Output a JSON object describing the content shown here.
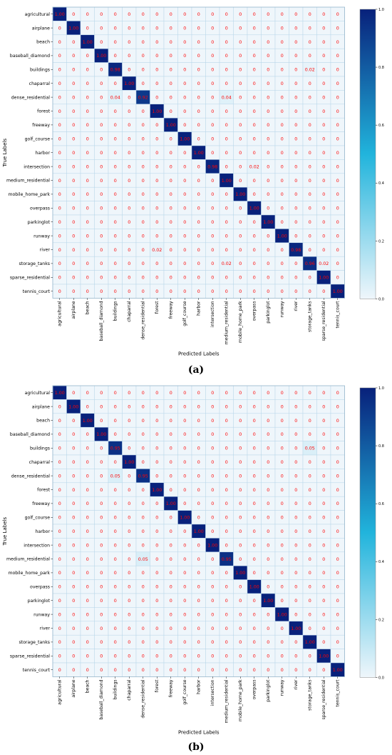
{
  "chart_data": [
    {
      "type": "heatmap",
      "panel_label": "(a)",
      "xlabel": "Predicted Labels",
      "ylabel": "True Labels",
      "labels": [
        "agricultural",
        "airplane",
        "beach",
        "baseball_diamond",
        "buildings",
        "chaparral",
        "dense_residential",
        "forest",
        "freeway",
        "golf_course",
        "harbor",
        "intersection",
        "medium_residential",
        "mobile_home_park",
        "overpass",
        "parkinglot",
        "runway",
        "river",
        "storage_tanks",
        "sparse_residential",
        "tennis_court"
      ],
      "colorbar": {
        "range": [
          0,
          1
        ],
        "ticks": [
          "0.0",
          "0.2",
          "0.4",
          "0.6",
          "0.8",
          "1.0"
        ]
      },
      "cells": [
        [
          "1.00",
          "0",
          "0",
          "0",
          "0",
          "0",
          "0",
          "0",
          "0",
          "0",
          "0",
          "0",
          "0",
          "0",
          "0",
          "0",
          "0",
          "0",
          "0",
          "0",
          "0"
        ],
        [
          "0",
          "1.00",
          "0",
          "0",
          "0",
          "0",
          "0",
          "0",
          "0",
          "0",
          "0",
          "0",
          "0",
          "0",
          "0",
          "0",
          "0",
          "0",
          "0",
          "0",
          "0"
        ],
        [
          "0",
          "0",
          "1.00",
          "0",
          "0",
          "0",
          "0",
          "0",
          "0",
          "0",
          "0",
          "0",
          "0",
          "0",
          "0",
          "0",
          "0",
          "0",
          "0",
          "0",
          "0"
        ],
        [
          "0",
          "0",
          "0",
          "1.00",
          "0",
          "0",
          "0",
          "0",
          "0",
          "0",
          "0",
          "0",
          "0",
          "0",
          "0",
          "0",
          "0",
          "0",
          "0",
          "0",
          "0"
        ],
        [
          "0",
          "0",
          "0",
          "0",
          "0.98",
          "0",
          "0",
          "0",
          "0",
          "0",
          "0",
          "0",
          "0",
          "0",
          "0",
          "0",
          "0",
          "0",
          "0.02",
          "0",
          "0"
        ],
        [
          "0",
          "0",
          "0",
          "0",
          "0",
          "1.00",
          "0",
          "0",
          "0",
          "0",
          "0",
          "0",
          "0",
          "0",
          "0",
          "0",
          "0",
          "0",
          "0",
          "0",
          "0"
        ],
        [
          "0",
          "0",
          "0",
          "0",
          "0.04",
          "0",
          "0.92",
          "0",
          "0",
          "0",
          "0",
          "0",
          "0.04",
          "0",
          "0",
          "0",
          "0",
          "0",
          "0",
          "0",
          "0"
        ],
        [
          "0",
          "0",
          "0",
          "0",
          "0",
          "0",
          "0",
          "1.00",
          "0",
          "0",
          "0",
          "0",
          "0",
          "0",
          "0",
          "0",
          "0",
          "0",
          "0",
          "0",
          "0"
        ],
        [
          "0",
          "0",
          "0",
          "0",
          "0",
          "0",
          "0",
          "0",
          "1.00",
          "0",
          "0",
          "0",
          "0",
          "0",
          "0",
          "0",
          "0",
          "0",
          "0",
          "0",
          "0"
        ],
        [
          "0",
          "0",
          "0",
          "0",
          "0",
          "0",
          "0",
          "0",
          "0",
          "1.00",
          "0",
          "0",
          "0",
          "0",
          "0",
          "0",
          "0",
          "0",
          "0",
          "0",
          "0"
        ],
        [
          "0",
          "0",
          "0",
          "0",
          "0",
          "0",
          "0",
          "0",
          "0",
          "0",
          "1.00",
          "0",
          "0",
          "0",
          "0",
          "0",
          "0",
          "0",
          "0",
          "0",
          "0"
        ],
        [
          "0",
          "0",
          "0",
          "0",
          "0",
          "0",
          "0",
          "0",
          "0",
          "0",
          "0",
          "0.98",
          "0",
          "0",
          "0.02",
          "0",
          "0",
          "0",
          "0",
          "0",
          "0"
        ],
        [
          "0",
          "0",
          "0",
          "0",
          "0",
          "0",
          "0",
          "0",
          "0",
          "0",
          "0",
          "0",
          "1.00",
          "0",
          "0",
          "0",
          "0",
          "0",
          "0",
          "0",
          "0"
        ],
        [
          "0",
          "0",
          "0",
          "0",
          "0",
          "0",
          "0",
          "0",
          "0",
          "0",
          "0",
          "0",
          "0",
          "1.00",
          "0",
          "0",
          "0",
          "0",
          "0",
          "0",
          "0"
        ],
        [
          "0",
          "0",
          "0",
          "0",
          "0",
          "0",
          "0",
          "0",
          "0",
          "0",
          "0",
          "0",
          "0",
          "0",
          "1.00",
          "0",
          "0",
          "0",
          "0",
          "0",
          "0"
        ],
        [
          "0",
          "0",
          "0",
          "0",
          "0",
          "0",
          "0",
          "0",
          "0",
          "0",
          "0",
          "0",
          "0",
          "0",
          "0",
          "1.00",
          "0",
          "0",
          "0",
          "0",
          "0"
        ],
        [
          "0",
          "0",
          "0",
          "0",
          "0",
          "0",
          "0",
          "0",
          "0",
          "0",
          "0",
          "0",
          "0",
          "0",
          "0",
          "0",
          "1.00",
          "0",
          "0",
          "0",
          "0"
        ],
        [
          "0",
          "0",
          "0",
          "0",
          "0",
          "0",
          "0",
          "0.02",
          "0",
          "0",
          "0",
          "0",
          "0",
          "0",
          "0",
          "0",
          "0",
          "0.98",
          "0",
          "0",
          "0"
        ],
        [
          "0",
          "0",
          "0",
          "0",
          "0",
          "0",
          "0",
          "0",
          "0",
          "0",
          "0",
          "0",
          "0.02",
          "0",
          "0",
          "0",
          "0",
          "0",
          "0.96",
          "0.02",
          "0"
        ],
        [
          "0",
          "0",
          "0",
          "0",
          "0",
          "0",
          "0",
          "0",
          "0",
          "0",
          "0",
          "0",
          "0",
          "0",
          "0",
          "0",
          "0",
          "0",
          "0",
          "1.00",
          "0"
        ],
        [
          "0",
          "0",
          "0",
          "0",
          "0",
          "0",
          "0",
          "0",
          "0",
          "0",
          "0",
          "0",
          "0",
          "0",
          "0",
          "0",
          "0",
          "0",
          "0",
          "0",
          "1.00"
        ]
      ]
    },
    {
      "type": "heatmap",
      "panel_label": "(b)",
      "xlabel": "Predicted Labels",
      "ylabel": "True Labels",
      "labels": [
        "agricultural",
        "airplane",
        "beach",
        "baseball_diamond",
        "buildings",
        "chaparral",
        "dense_residential",
        "forest",
        "freeway",
        "golf_course",
        "harbor",
        "intersection",
        "medium_residential",
        "mobile_home_park",
        "overpass",
        "parkinglot",
        "runway",
        "river",
        "storage_tanks",
        "sparse_residential",
        "tennis_court"
      ],
      "colorbar": {
        "range": [
          0,
          1
        ],
        "ticks": [
          "0.0",
          "0.2",
          "0.4",
          "0.6",
          "0.8",
          "1.0"
        ]
      },
      "cells": [
        [
          "1.00",
          "0",
          "0",
          "0",
          "0",
          "0",
          "0",
          "0",
          "0",
          "0",
          "0",
          "0",
          "0",
          "0",
          "0",
          "0",
          "0",
          "0",
          "0",
          "0",
          "0"
        ],
        [
          "0",
          "1.00",
          "0",
          "0",
          "0",
          "0",
          "0",
          "0",
          "0",
          "0",
          "0",
          "0",
          "0",
          "0",
          "0",
          "0",
          "0",
          "0",
          "0",
          "0",
          "0"
        ],
        [
          "0",
          "0",
          "1.00",
          "0",
          "0",
          "0",
          "0",
          "0",
          "0",
          "0",
          "0",
          "0",
          "0",
          "0",
          "0",
          "0",
          "0",
          "0",
          "0",
          "0",
          "0"
        ],
        [
          "0",
          "0",
          "0",
          "1.00",
          "0",
          "0",
          "0",
          "0",
          "0",
          "0",
          "0",
          "0",
          "0",
          "0",
          "0",
          "0",
          "0",
          "0",
          "0",
          "0",
          "0"
        ],
        [
          "0",
          "0",
          "0",
          "0",
          "0.95",
          "0",
          "0",
          "0",
          "0",
          "0",
          "0",
          "0",
          "0",
          "0",
          "0",
          "0",
          "0",
          "0",
          "0.05",
          "0",
          "0"
        ],
        [
          "0",
          "0",
          "0",
          "0",
          "0",
          "1.00",
          "0",
          "0",
          "0",
          "0",
          "0",
          "0",
          "0",
          "0",
          "0",
          "0",
          "0",
          "0",
          "0",
          "0",
          "0"
        ],
        [
          "0",
          "0",
          "0",
          "0",
          "0.05",
          "0",
          "0.95",
          "0",
          "0",
          "0",
          "0",
          "0",
          "0",
          "0",
          "0",
          "0",
          "0",
          "0",
          "0",
          "0",
          "0"
        ],
        [
          "0",
          "0",
          "0",
          "0",
          "0",
          "0",
          "0",
          "1.00",
          "0",
          "0",
          "0",
          "0",
          "0",
          "0",
          "0",
          "0",
          "0",
          "0",
          "0",
          "0",
          "0"
        ],
        [
          "0",
          "0",
          "0",
          "0",
          "0",
          "0",
          "0",
          "0",
          "1.00",
          "0",
          "0",
          "0",
          "0",
          "0",
          "0",
          "0",
          "0",
          "0",
          "0",
          "0",
          "0"
        ],
        [
          "0",
          "0",
          "0",
          "0",
          "0",
          "0",
          "0",
          "0",
          "0",
          "1.00",
          "0",
          "0",
          "0",
          "0",
          "0",
          "0",
          "0",
          "0",
          "0",
          "0",
          "0"
        ],
        [
          "0",
          "0",
          "0",
          "0",
          "0",
          "0",
          "0",
          "0",
          "0",
          "0",
          "1.00",
          "0",
          "0",
          "0",
          "0",
          "0",
          "0",
          "0",
          "0",
          "0",
          "0"
        ],
        [
          "0",
          "0",
          "0",
          "0",
          "0",
          "0",
          "0",
          "0",
          "0",
          "0",
          "0",
          "1.00",
          "0",
          "0",
          "0",
          "0",
          "0",
          "0",
          "0",
          "0",
          "0"
        ],
        [
          "0",
          "0",
          "0",
          "0",
          "0",
          "0",
          "0.05",
          "0",
          "0",
          "0",
          "0",
          "0",
          "0.95",
          "0",
          "0",
          "0",
          "0",
          "0",
          "0",
          "0",
          "0"
        ],
        [
          "0",
          "0",
          "0",
          "0",
          "0",
          "0",
          "0",
          "0",
          "0",
          "0",
          "0",
          "0",
          "0",
          "1.00",
          "0",
          "0",
          "0",
          "0",
          "0",
          "0",
          "0"
        ],
        [
          "0",
          "0",
          "0",
          "0",
          "0",
          "0",
          "0",
          "0",
          "0",
          "0",
          "0",
          "0",
          "0",
          "0",
          "1.00",
          "0",
          "0",
          "0",
          "0",
          "0",
          "0"
        ],
        [
          "0",
          "0",
          "0",
          "0",
          "0",
          "0",
          "0",
          "0",
          "0",
          "0",
          "0",
          "0",
          "0",
          "0",
          "0",
          "1.00",
          "0",
          "0",
          "0",
          "0",
          "0"
        ],
        [
          "0",
          "0",
          "0",
          "0",
          "0",
          "0",
          "0",
          "0",
          "0",
          "0",
          "0",
          "0",
          "0",
          "0",
          "0",
          "0",
          "1.00",
          "0",
          "0",
          "0",
          "0"
        ],
        [
          "0",
          "0",
          "0",
          "0",
          "0",
          "0",
          "0",
          "0",
          "0",
          "0",
          "0",
          "0",
          "0",
          "0",
          "0",
          "0",
          "0",
          "1.00",
          "0",
          "0",
          "0"
        ],
        [
          "0",
          "0",
          "0",
          "0",
          "0",
          "0",
          "0",
          "0",
          "0",
          "0",
          "0",
          "0",
          "0",
          "0",
          "0",
          "0",
          "0",
          "0",
          "1.00",
          "0",
          "0"
        ],
        [
          "0",
          "0",
          "0",
          "0",
          "0",
          "0",
          "0",
          "0",
          "0",
          "0",
          "0",
          "0",
          "0",
          "0",
          "0",
          "0",
          "0",
          "0",
          "0",
          "1.00",
          "0"
        ],
        [
          "0",
          "0",
          "0",
          "0",
          "0",
          "0",
          "0",
          "0",
          "0",
          "0",
          "0",
          "0",
          "0",
          "0",
          "0",
          "0",
          "0",
          "0",
          "0",
          "0",
          "1.00"
        ]
      ]
    }
  ],
  "colors": {
    "low": "#eff6fb",
    "mid": "#21b4dc",
    "high": "#08217b",
    "cell_text": "#ff0000",
    "grid": "#b9d7ea"
  }
}
